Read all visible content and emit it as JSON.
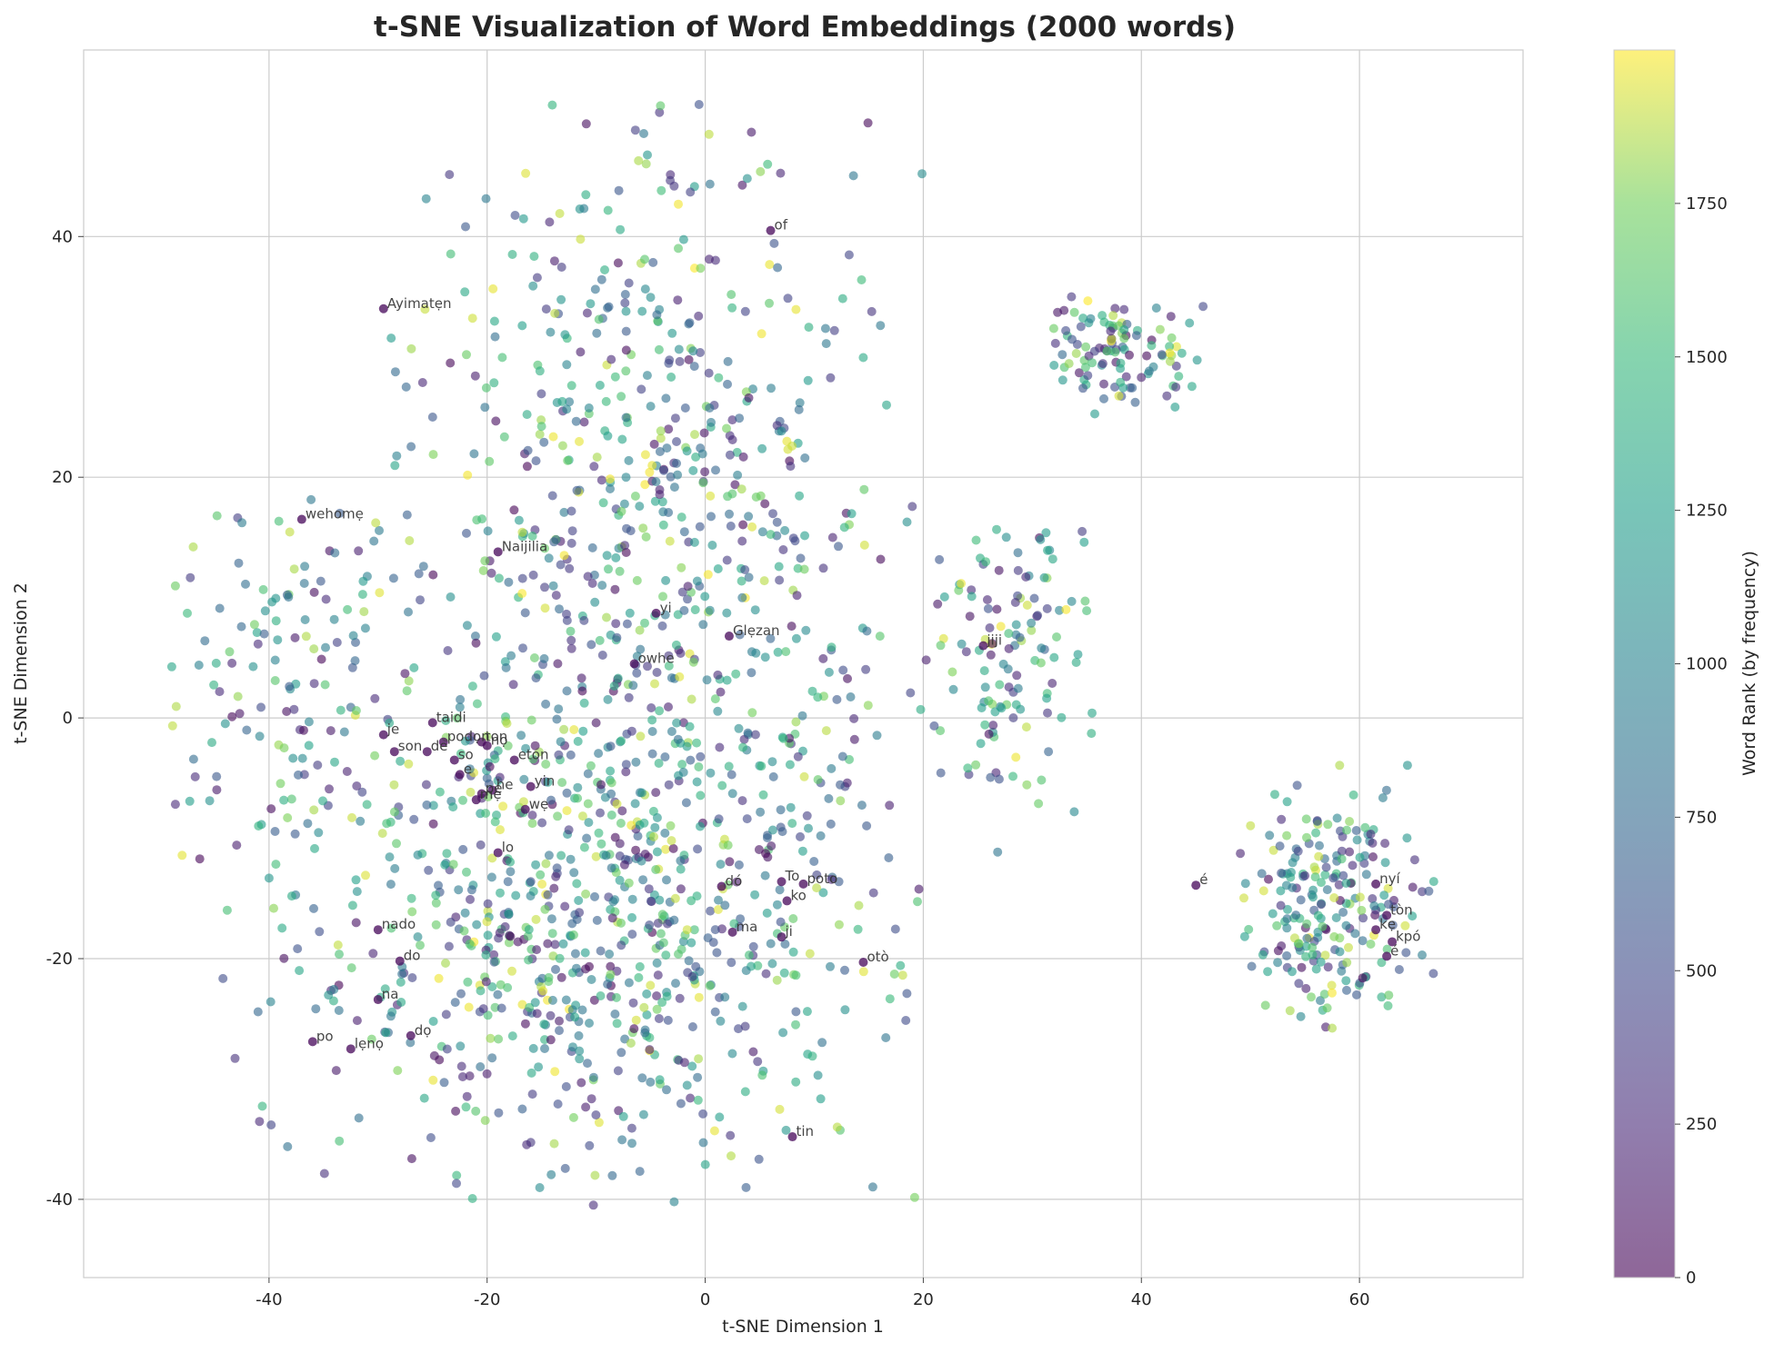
{
  "chart_data": {
    "type": "scatter",
    "title": "t-SNE Visualization of Word Embeddings (2000 words)",
    "xlabel": "t-SNE Dimension 1",
    "ylabel": "t-SNE Dimension 2",
    "xlim": [
      -57,
      75
    ],
    "ylim": [
      -46.5,
      55.5
    ],
    "xticks": [
      -40,
      -20,
      0,
      20,
      40,
      60
    ],
    "yticks": [
      -40,
      -20,
      0,
      20,
      40
    ],
    "grid": true,
    "point_count": 2000,
    "colormap": "viridis",
    "point_alpha": 0.6,
    "colorbar": {
      "label": "Word Rank (by frequency)",
      "range": [
        0,
        2000
      ],
      "ticks": [
        0,
        250,
        500,
        750,
        1000,
        1250,
        1500,
        1750
      ]
    },
    "clusters": [
      {
        "cx": -5,
        "cy": 15,
        "sx": 11,
        "sy": 18,
        "n": 640,
        "xmin": -33,
        "xmax": 20,
        "ymin": -8,
        "ymax": 51
      },
      {
        "cx": -10,
        "cy": -17,
        "sx": 14,
        "sy": 11,
        "n": 760,
        "xmin": -46,
        "xmax": 22,
        "ymin": -42,
        "ymax": 0
      },
      {
        "cx": -38,
        "cy": 3,
        "sx": 6,
        "sy": 9,
        "n": 140,
        "xmin": -49,
        "xmax": -25,
        "ymin": -22,
        "ymax": 19
      },
      {
        "cx": 38,
        "cy": 30.5,
        "sx": 4,
        "sy": 2.4,
        "n": 110,
        "xmin": 29,
        "xmax": 46,
        "ymin": 25,
        "ymax": 36
      },
      {
        "cx": 28,
        "cy": 5,
        "sx": 4,
        "sy": 7,
        "n": 130,
        "xmin": 18,
        "xmax": 36,
        "ymin": -13,
        "ymax": 16
      },
      {
        "cx": 57,
        "cy": -16,
        "sx": 4.2,
        "sy": 5,
        "n": 220,
        "xmin": 48,
        "xmax": 69,
        "ymin": -26,
        "ymax": -3
      }
    ],
    "labeled_points": [
      {
        "word": "Ayimatẹn",
        "x": -29.5,
        "y": 34
      },
      {
        "word": "of",
        "x": 6,
        "y": 40.5
      },
      {
        "word": "wehomẹ",
        "x": -37,
        "y": 16.5
      },
      {
        "word": "Naijilia",
        "x": -19,
        "y": 13.8
      },
      {
        "word": "yi",
        "x": -4.5,
        "y": 8.7
      },
      {
        "word": "Glẹzan",
        "x": 2.2,
        "y": 6.8
      },
      {
        "word": "owhe",
        "x": -6.5,
        "y": 4.5
      },
      {
        "word": "jiji",
        "x": 25.5,
        "y": 6
      },
      {
        "word": "taidi",
        "x": -25,
        "y": -0.4
      },
      {
        "word": "je",
        "x": -29.5,
        "y": -1.4
      },
      {
        "word": "podọn",
        "x": -24,
        "y": -2
      },
      {
        "word": "ton",
        "x": -20.5,
        "y": -2
      },
      {
        "word": "nọ",
        "x": -20,
        "y": -2.3
      },
      {
        "word": "son",
        "x": -28.5,
        "y": -2.8
      },
      {
        "word": "de",
        "x": -25.5,
        "y": -2.8
      },
      {
        "word": "so",
        "x": -23,
        "y": -3.5
      },
      {
        "word": "eton",
        "x": -17.5,
        "y": -3.5
      },
      {
        "word": "e",
        "x": -22.5,
        "y": -4.7
      },
      {
        "word": "yin",
        "x": -16,
        "y": -5.7
      },
      {
        "word": "he",
        "x": -19.5,
        "y": -6
      },
      {
        "word": "pe",
        "x": -20.5,
        "y": -6.3
      },
      {
        "word": "mẹ",
        "x": -21,
        "y": -6.8
      },
      {
        "word": "wẹ",
        "x": -16.5,
        "y": -7.6
      },
      {
        "word": "lo",
        "x": -19,
        "y": -11.2
      },
      {
        "word": "dó",
        "x": 1.5,
        "y": -14
      },
      {
        "word": "To",
        "x": 7,
        "y": -13.6
      },
      {
        "word": "poto",
        "x": 9,
        "y": -13.8
      },
      {
        "word": "ko",
        "x": 7.5,
        "y": -15.2
      },
      {
        "word": "ma",
        "x": 2.5,
        "y": -17.8
      },
      {
        "word": "ji",
        "x": 7,
        "y": -18.2
      },
      {
        "word": "otò",
        "x": 14.5,
        "y": -20.3
      },
      {
        "word": "nado",
        "x": -30,
        "y": -17.6
      },
      {
        "word": "do",
        "x": -28,
        "y": -20.2
      },
      {
        "word": "na",
        "x": -30,
        "y": -23.4
      },
      {
        "word": "dọ",
        "x": -27,
        "y": -26.4
      },
      {
        "word": "po",
        "x": -36,
        "y": -26.9
      },
      {
        "word": "lẹnọ",
        "x": -32.5,
        "y": -27.5
      },
      {
        "word": "tin",
        "x": 8,
        "y": -34.8
      },
      {
        "word": "é",
        "x": 45,
        "y": -13.9
      },
      {
        "word": "nyí",
        "x": 61.5,
        "y": -13.8
      },
      {
        "word": "tòn",
        "x": 62.5,
        "y": -16.4
      },
      {
        "word": "kẹ",
        "x": 61.5,
        "y": -17.6
      },
      {
        "word": "kpó",
        "x": 63,
        "y": -18.6
      },
      {
        "word": "é",
        "x": 62.5,
        "y": -19.8
      }
    ]
  }
}
